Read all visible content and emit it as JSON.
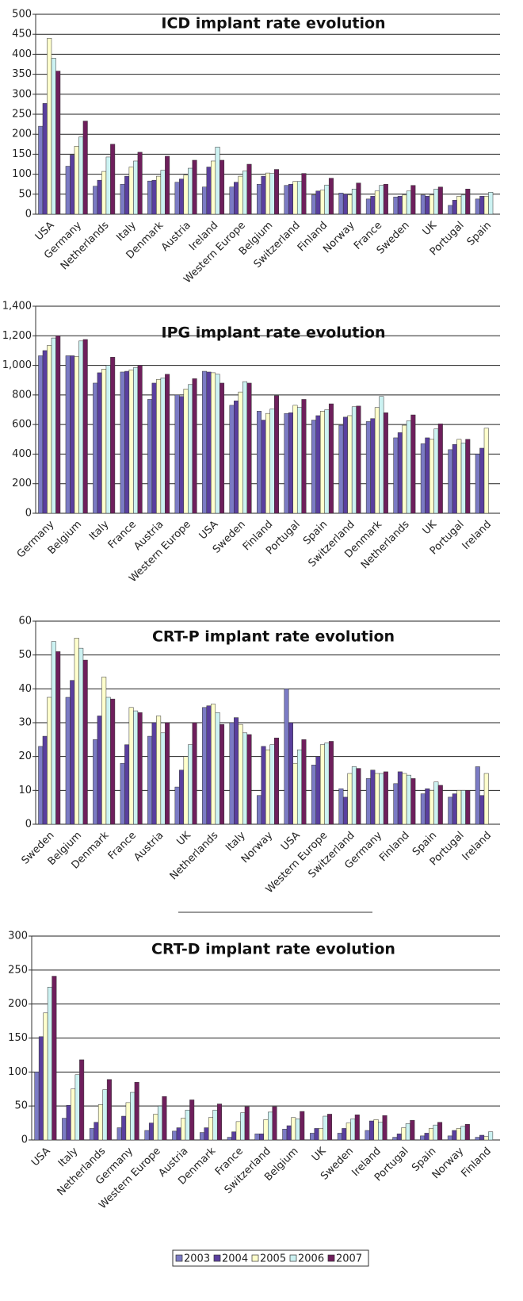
{
  "legend": [
    {
      "name": "2003",
      "color": "#7b7bc4"
    },
    {
      "name": "2004",
      "color": "#5a3f9e"
    },
    {
      "name": "2005",
      "color": "#ffffcc"
    },
    {
      "name": "2006",
      "color": "#ccf2f2"
    },
    {
      "name": "2007",
      "color": "#6e1f5c"
    }
  ],
  "chart_data": [
    {
      "type": "bar",
      "title": "ICD implant rate evolution",
      "grid": true,
      "ylim": [
        0,
        500
      ],
      "yticks": [
        0,
        50,
        100,
        150,
        200,
        250,
        300,
        350,
        400,
        450,
        500
      ],
      "categories": [
        "USA",
        "Germany",
        "Netherlands",
        "Italy",
        "Denmark",
        "Austria",
        "Ireland",
        "Western Europe",
        "Belgium",
        "Switzerland",
        "Finland",
        "Norway",
        "France",
        "Sweden",
        "UK",
        "Portugal",
        "Spain"
      ],
      "series": [
        {
          "values": [
            220,
            120,
            70,
            75,
            83,
            80,
            68,
            68,
            75,
            72,
            48,
            53,
            38,
            43,
            48,
            22,
            38
          ]
        },
        {
          "values": [
            277,
            148,
            85,
            95,
            85,
            88,
            118,
            80,
            95,
            75,
            58,
            50,
            45,
            45,
            45,
            35,
            45
          ]
        },
        {
          "values": [
            440,
            170,
            107,
            118,
            95,
            98,
            133,
            95,
            103,
            82,
            60,
            48,
            58,
            48,
            48,
            45,
            45
          ]
        },
        {
          "values": [
            390,
            193,
            143,
            133,
            110,
            115,
            168,
            108,
            102,
            82,
            73,
            63,
            72,
            58,
            63,
            48,
            55
          ]
        },
        {
          "values": [
            358,
            233,
            175,
            155,
            145,
            135,
            135,
            125,
            112,
            102,
            90,
            78,
            75,
            72,
            68,
            63,
            null
          ]
        }
      ]
    },
    {
      "type": "bar",
      "title": "IPG implant rate evolution",
      "grid": true,
      "ylim": [
        0,
        1400
      ],
      "yticks": [
        0,
        200,
        400,
        600,
        800,
        {
          "value": 1000,
          "label": "1,000"
        },
        {
          "value": 1200,
          "label": "1,200"
        },
        {
          "value": 1400,
          "label": "1,400"
        }
      ],
      "categories": [
        "Germany",
        "Belgium",
        "Italy",
        "France",
        "Austria",
        "Western Europe",
        "USA",
        "Sweden",
        "Finland",
        "Portugal",
        "Spain",
        "Switzerland",
        "Denmark",
        "Netherlands",
        "UK",
        "Portugal",
        "Ireland"
      ],
      "series": [
        {
          "values": [
            1065,
            1065,
            880,
            955,
            770,
            800,
            960,
            730,
            690,
            675,
            630,
            595,
            620,
            510,
            470,
            430,
            400
          ]
        },
        {
          "values": [
            1100,
            1065,
            950,
            960,
            880,
            790,
            955,
            760,
            630,
            680,
            660,
            650,
            640,
            545,
            510,
            465,
            440
          ]
        },
        {
          "values": [
            1135,
            1060,
            975,
            970,
            905,
            840,
            950,
            820,
            675,
            730,
            690,
            660,
            715,
            595,
            500,
            500,
            575
          ]
        },
        {
          "values": [
            1185,
            1165,
            1000,
            985,
            915,
            870,
            940,
            890,
            705,
            715,
            700,
            720,
            790,
            625,
            570,
            475,
            null
          ]
        },
        {
          "values": [
            1200,
            1175,
            1055,
            1000,
            940,
            910,
            880,
            880,
            795,
            770,
            740,
            725,
            680,
            665,
            605,
            500,
            null
          ]
        }
      ]
    },
    {
      "type": "bar",
      "title": "CRT-P implant rate evolution",
      "grid": true,
      "ylim": [
        0,
        60
      ],
      "yticks": [
        0,
        10,
        20,
        30,
        40,
        50,
        60
      ],
      "categories": [
        "Sweden",
        "Belgium",
        "Denmark",
        "France",
        "Austria",
        "UK",
        "Netherlands",
        "Italy",
        "Norway",
        "USA",
        "Western Europe",
        "Switzerland",
        "Germany",
        "Finland",
        "Spain",
        "Portugal",
        "Ireland"
      ],
      "series": [
        {
          "values": [
            23,
            37.5,
            25,
            18,
            26,
            11,
            34.5,
            30,
            8.5,
            40,
            17.5,
            10.5,
            13.5,
            12,
            9,
            8,
            17
          ]
        },
        {
          "values": [
            26,
            42.5,
            32,
            23.5,
            30,
            16,
            35,
            31.5,
            23,
            30,
            20,
            8,
            16,
            15.5,
            10.5,
            9,
            8.5
          ]
        },
        {
          "values": [
            37.5,
            55,
            43.5,
            34.5,
            32,
            20,
            35.5,
            29.5,
            22,
            18,
            23.5,
            15,
            15,
            15,
            10,
            10,
            15
          ]
        },
        {
          "values": [
            54,
            52,
            37.5,
            33.5,
            27,
            23.5,
            33,
            27,
            23.5,
            22,
            24,
            17,
            15,
            14.5,
            12.5,
            10,
            null
          ]
        },
        {
          "values": [
            51,
            48.5,
            37,
            33,
            30,
            30,
            29.5,
            26.5,
            25.5,
            25,
            24.5,
            16.5,
            15.5,
            13.5,
            11.5,
            10,
            null
          ]
        }
      ]
    },
    {
      "type": "bar",
      "title": "CRT-D implant rate evolution",
      "grid": true,
      "ylim": [
        0,
        300
      ],
      "yticks": [
        0,
        50,
        100,
        150,
        200,
        250,
        300
      ],
      "categories": [
        "USA",
        "Italy",
        "Netherlands",
        "Germany",
        "Western Europe",
        "Austria",
        "Denmark",
        "France",
        "Switzerland",
        "Belgium",
        "UK",
        "Sweden",
        "Ireland",
        "Portugal",
        "Spain",
        "Norway",
        "Finland"
      ],
      "series": [
        {
          "values": [
            100,
            32,
            17,
            18,
            14,
            13,
            11,
            4,
            9,
            16,
            10,
            10,
            14,
            4,
            6,
            6,
            4
          ]
        },
        {
          "values": [
            152,
            51,
            26,
            35,
            25,
            18,
            18,
            12,
            9,
            21,
            17,
            17,
            28,
            9,
            10,
            14,
            7
          ]
        },
        {
          "values": [
            187,
            75,
            52,
            55,
            38,
            32,
            33,
            27,
            30,
            33,
            17,
            25,
            30,
            18,
            17,
            17,
            5
          ]
        },
        {
          "values": [
            225,
            96,
            74,
            70,
            50,
            44,
            44,
            40,
            41,
            31,
            35,
            31,
            26,
            24,
            22,
            20,
            12
          ]
        },
        {
          "values": [
            241,
            118,
            89,
            85,
            64,
            59,
            53,
            49,
            49,
            42,
            38,
            37,
            36,
            29,
            26,
            23,
            null
          ]
        }
      ]
    }
  ]
}
